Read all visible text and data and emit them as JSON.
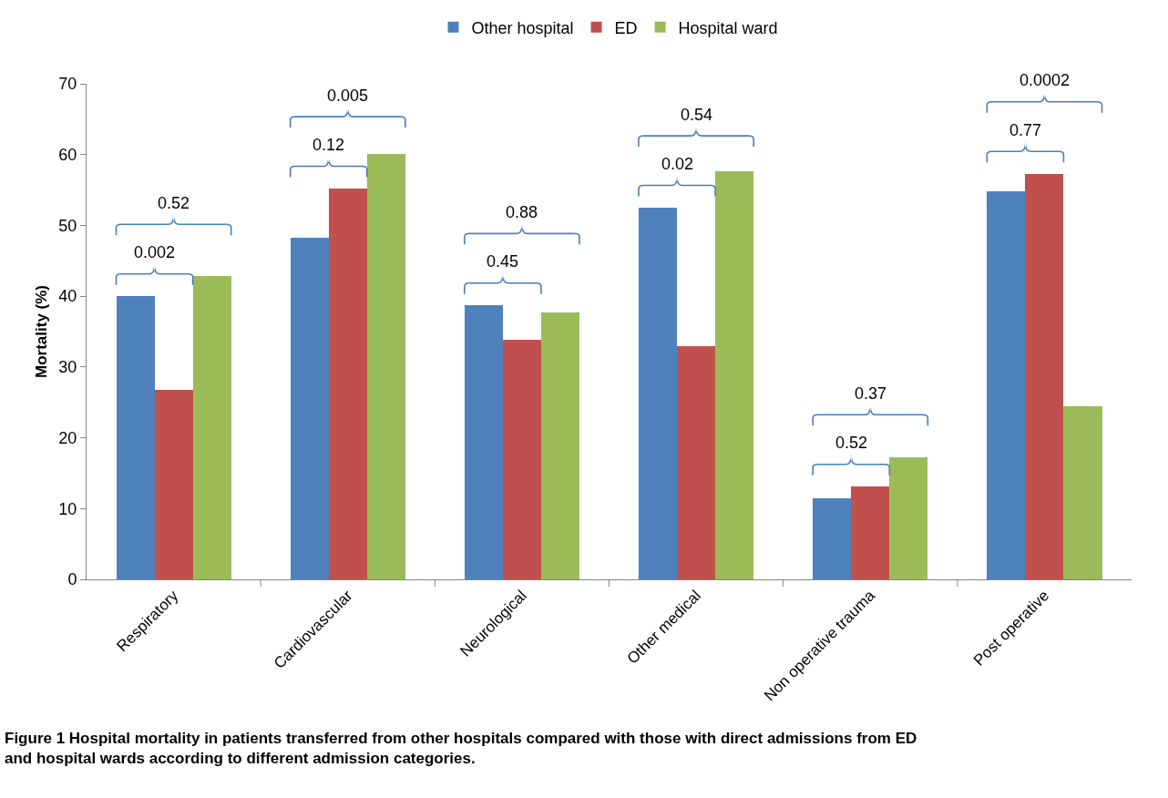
{
  "chart_data": {
    "type": "bar",
    "categories": [
      "Respiratory",
      "Cardiovascular",
      "Neurological",
      "Other medical",
      "Non operative trauma",
      "Post operative"
    ],
    "series": [
      {
        "name": "Other hospital",
        "color": "#4f81bd",
        "values": [
          40.0,
          48.2,
          38.7,
          52.5,
          11.5,
          54.8
        ]
      },
      {
        "name": "ED",
        "color": "#c0504d",
        "values": [
          26.8,
          55.2,
          33.9,
          33.0,
          13.1,
          57.3
        ]
      },
      {
        "name": "Hospital ward",
        "color": "#9bbb59",
        "values": [
          42.8,
          60.1,
          37.7,
          57.6,
          17.2,
          24.4
        ]
      }
    ],
    "ylabel": "Mortality (%)",
    "ylim": [
      0,
      70
    ],
    "yticks": [
      0,
      10,
      20,
      30,
      40,
      50,
      60,
      70
    ],
    "grid": false,
    "legend": "top",
    "annotations": [
      "0.002",
      "0.52",
      "0.12",
      "0.005",
      "0.45",
      "0.88",
      "0.02",
      "0.54",
      "0.52",
      "0.37",
      "0.77",
      "0.0002",
      "Figure 1 Hospital mortality in patients transferred from other hospitals compared with those with direct admissions from ED and hospital wards according to different admission categories."
    ]
  }
}
